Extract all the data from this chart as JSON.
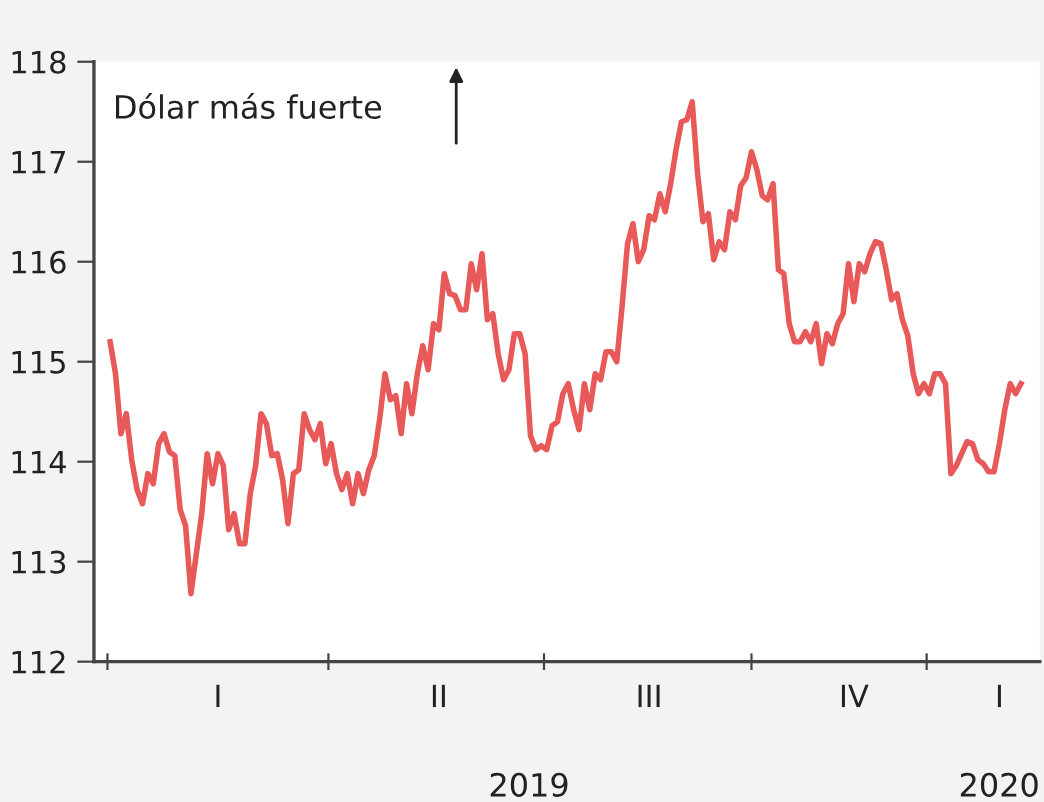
{
  "chart_data": {
    "type": "line",
    "series": [
      {
        "color": "#e85a5a",
        "values": [
          115.2,
          114.88,
          114.28,
          114.48,
          114.02,
          113.72,
          113.58,
          113.88,
          113.78,
          114.18,
          114.28,
          114.1,
          114.06,
          113.52,
          113.36,
          112.68,
          113.08,
          113.48,
          114.08,
          113.78,
          114.08,
          113.96,
          113.32,
          113.48,
          113.18,
          113.18,
          113.68,
          113.96,
          114.48,
          114.38,
          114.06,
          114.08,
          113.82,
          113.38,
          113.88,
          113.92,
          114.48,
          114.32,
          114.22,
          114.38,
          113.98,
          114.18,
          113.88,
          113.72,
          113.88,
          113.58,
          113.88,
          113.68,
          113.92,
          114.06,
          114.42,
          114.88,
          114.62,
          114.66,
          114.28,
          114.78,
          114.48,
          114.88,
          115.16,
          114.92,
          115.38,
          115.32,
          115.88,
          115.68,
          115.66,
          115.52,
          115.52,
          115.98,
          115.72,
          116.08,
          115.42,
          115.48,
          115.08,
          114.82,
          114.92,
          115.28,
          115.28,
          115.08,
          114.26,
          114.12,
          114.16,
          114.12,
          114.36,
          114.4,
          114.68,
          114.78,
          114.52,
          114.32,
          114.78,
          114.52,
          114.88,
          114.82,
          115.1,
          115.1,
          115.0,
          115.56,
          116.18,
          116.38,
          116.0,
          116.12,
          116.46,
          116.42,
          116.68,
          116.5,
          116.78,
          117.12,
          117.4,
          117.42,
          117.6,
          116.88,
          116.4,
          116.48,
          116.02,
          116.2,
          116.12,
          116.5,
          116.42,
          116.76,
          116.84,
          117.1,
          116.92,
          116.66,
          116.62,
          116.78,
          115.92,
          115.88,
          115.38,
          115.2,
          115.2,
          115.3,
          115.2,
          115.38,
          114.98,
          115.28,
          115.18,
          115.38,
          115.48,
          115.98,
          115.6,
          115.98,
          115.9,
          116.08,
          116.2,
          116.18,
          115.92,
          115.62,
          115.68,
          115.42,
          115.26,
          114.88,
          114.68,
          114.78,
          114.68,
          114.88,
          114.88,
          114.78,
          113.88,
          113.96,
          114.08,
          114.2,
          114.18,
          114.02,
          113.98,
          113.9,
          113.9,
          114.18,
          114.52,
          114.78,
          114.68,
          114.78
        ]
      }
    ],
    "categories": [
      null,
      null,
      null,
      null,
      null,
      null,
      null,
      null,
      null,
      null,
      null,
      null,
      null,
      null,
      null,
      null,
      null,
      null,
      null,
      null,
      "I",
      null,
      null,
      null,
      null,
      null,
      null,
      null,
      null,
      null,
      null,
      null,
      null,
      null,
      null,
      null,
      null,
      null,
      null,
      null,
      null,
      null,
      null,
      null,
      null,
      null,
      null,
      null,
      null,
      null,
      null,
      null,
      null,
      null,
      null,
      null,
      null,
      null,
      null,
      null,
      null,
      "II",
      null,
      null,
      null,
      null,
      null,
      null,
      null,
      null,
      null,
      null,
      null,
      null,
      null,
      null,
      null,
      null,
      null,
      null,
      null,
      null,
      null,
      null,
      null,
      null,
      null,
      null,
      null,
      null,
      null,
      null,
      null,
      null,
      null,
      null,
      null,
      null,
      null,
      null,
      "III",
      null,
      null,
      null,
      null,
      null,
      null,
      null,
      null,
      null,
      null,
      null,
      null,
      null,
      null,
      null,
      null,
      null,
      null,
      null,
      null,
      null,
      null,
      null,
      null,
      null,
      null,
      null,
      null,
      null,
      null,
      null,
      null,
      null,
      null,
      null,
      null,
      null,
      "IV",
      null,
      null,
      null,
      null,
      null,
      null,
      null,
      null,
      null,
      null,
      null,
      null,
      null,
      null,
      null,
      null,
      null,
      null,
      null,
      null,
      null,
      null,
      null,
      null,
      null,
      null,
      "I",
      null,
      null,
      null,
      null
    ],
    "ylim": [
      112,
      118
    ],
    "yticks": [
      112,
      113,
      114,
      115,
      116,
      117,
      118
    ],
    "grid": false,
    "legend": false,
    "marker": "none",
    "line_style": "solid",
    "annotations": [
      "Dólar más fuerte",
      "2019",
      "2020"
    ]
  }
}
